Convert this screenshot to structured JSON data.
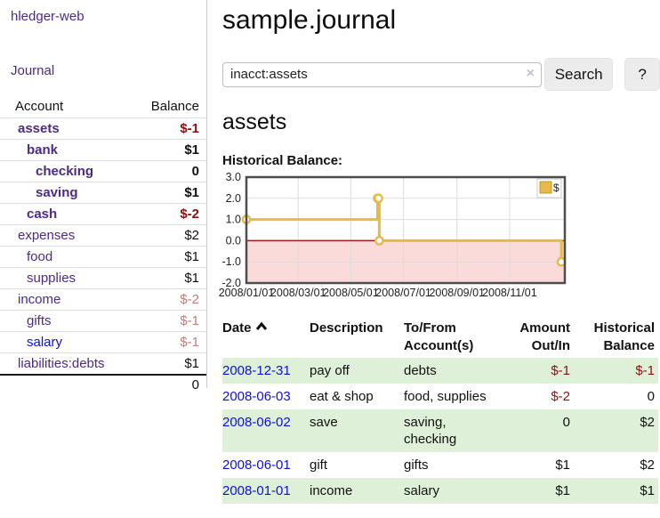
{
  "app": {
    "brand": "hledger-web",
    "nav_journal": "Journal"
  },
  "colors": {
    "link_purple": "#4b2a88",
    "link_blue": "#0e0ee0",
    "negative_strong": "#8c1010",
    "negative_soft": "#bc7e7e",
    "row_stripe_green": "#dff0d8",
    "series_gold": "#e6ba45",
    "below_zero_pink": "#fbdada",
    "zero_line_red": "#9b1c1c"
  },
  "sidebar": {
    "header": {
      "account": "Account",
      "balance": "Balance"
    },
    "accounts": [
      {
        "name": "assets",
        "depth": 1,
        "bold": true,
        "name_color": "purple",
        "balance": "$-1",
        "balance_class": "neg-strong"
      },
      {
        "name": "bank",
        "depth": 2,
        "bold": true,
        "name_color": "purple",
        "balance": "$1",
        "balance_class": "plain"
      },
      {
        "name": "checking",
        "depth": 3,
        "bold": true,
        "name_color": "purple",
        "balance": "0",
        "balance_class": "plain"
      },
      {
        "name": "saving",
        "depth": 3,
        "bold": true,
        "name_color": "purple",
        "balance": "$1",
        "balance_class": "plain"
      },
      {
        "name": "cash",
        "depth": 2,
        "bold": true,
        "name_color": "purple",
        "balance": "$-2",
        "balance_class": "neg-strong"
      },
      {
        "name": "expenses",
        "depth": 1,
        "bold": false,
        "name_color": "purple",
        "balance": "$2",
        "balance_class": "plain"
      },
      {
        "name": "food",
        "depth": 2,
        "bold": false,
        "name_color": "purple",
        "balance": "$1",
        "balance_class": "plain"
      },
      {
        "name": "supplies",
        "depth": 2,
        "bold": false,
        "name_color": "purple",
        "balance": "$1",
        "balance_class": "plain"
      },
      {
        "name": "income",
        "depth": 1,
        "bold": false,
        "name_color": "purple",
        "balance": "$-2",
        "balance_class": "neg-soft"
      },
      {
        "name": "gifts",
        "depth": 2,
        "bold": false,
        "name_color": "purple",
        "balance": "$-1",
        "balance_class": "neg-soft"
      },
      {
        "name": "salary",
        "depth": 2,
        "bold": false,
        "name_color": "blue",
        "balance": "$-1",
        "balance_class": "neg-soft"
      },
      {
        "name": "liabilities:debts",
        "depth": 1,
        "bold": false,
        "name_color": "purple",
        "balance": "$1",
        "balance_class": "plain"
      }
    ],
    "total": "0"
  },
  "main": {
    "title": "sample.journal",
    "search": {
      "value": "inacct:assets",
      "clear_icon": "×",
      "button_label": "Search",
      "help_label": "?"
    },
    "account_heading": "assets",
    "chart_label": "Historical Balance:"
  },
  "chart_data": {
    "type": "line",
    "title": "Historical Balance",
    "step": true,
    "series": [
      {
        "name": "$",
        "color": "#e6ba45",
        "points": [
          {
            "date": "2008-01-01",
            "value": 1
          },
          {
            "date": "2008-06-01",
            "value": 2
          },
          {
            "date": "2008-06-02",
            "value": 2
          },
          {
            "date": "2008-06-03",
            "value": 0
          },
          {
            "date": "2008-12-31",
            "value": -1
          }
        ]
      }
    ],
    "ylim": [
      -2,
      3
    ],
    "yticks": [
      "3.0",
      "2.0",
      "1.0",
      "0.0",
      "-1.0",
      "-2.0"
    ],
    "xticks": [
      "2008/01/01",
      "2008/03/01",
      "2008/05/01",
      "2008/07/01",
      "2008/09/01",
      "2008/11/01"
    ],
    "x_span_days": 369,
    "grid": true,
    "legend": {
      "label": "$",
      "position": "top-right"
    }
  },
  "register": {
    "columns": {
      "date": "Date",
      "description": "Description",
      "accounts": "To/From Account(s)",
      "amount": "Amount Out/In",
      "balance": "Historical Balance"
    },
    "sort": {
      "column": "date",
      "direction": "ascending"
    },
    "rows": [
      {
        "date": "2008-12-31",
        "description": "pay off",
        "accounts": "debts",
        "amount": "$-1",
        "amount_class": "neg-strong",
        "balance": "$-1",
        "balance_class": "neg-strong",
        "stripe": true
      },
      {
        "date": "2008-06-03",
        "description": "eat & shop",
        "accounts": "food, supplies",
        "amount": "$-2",
        "amount_class": "neg-strong",
        "balance": "0",
        "balance_class": "plain",
        "stripe": false
      },
      {
        "date": "2008-06-02",
        "description": "save",
        "accounts": "saving, checking",
        "amount": "0",
        "amount_class": "plain",
        "balance": "$2",
        "balance_class": "plain",
        "stripe": true
      },
      {
        "date": "2008-06-01",
        "description": "gift",
        "accounts": "gifts",
        "amount": "$1",
        "amount_class": "plain",
        "balance": "$2",
        "balance_class": "plain",
        "stripe": false
      },
      {
        "date": "2008-01-01",
        "description": "income",
        "accounts": "salary",
        "amount": "$1",
        "amount_class": "plain",
        "balance": "$1",
        "balance_class": "plain",
        "stripe": true
      }
    ]
  }
}
